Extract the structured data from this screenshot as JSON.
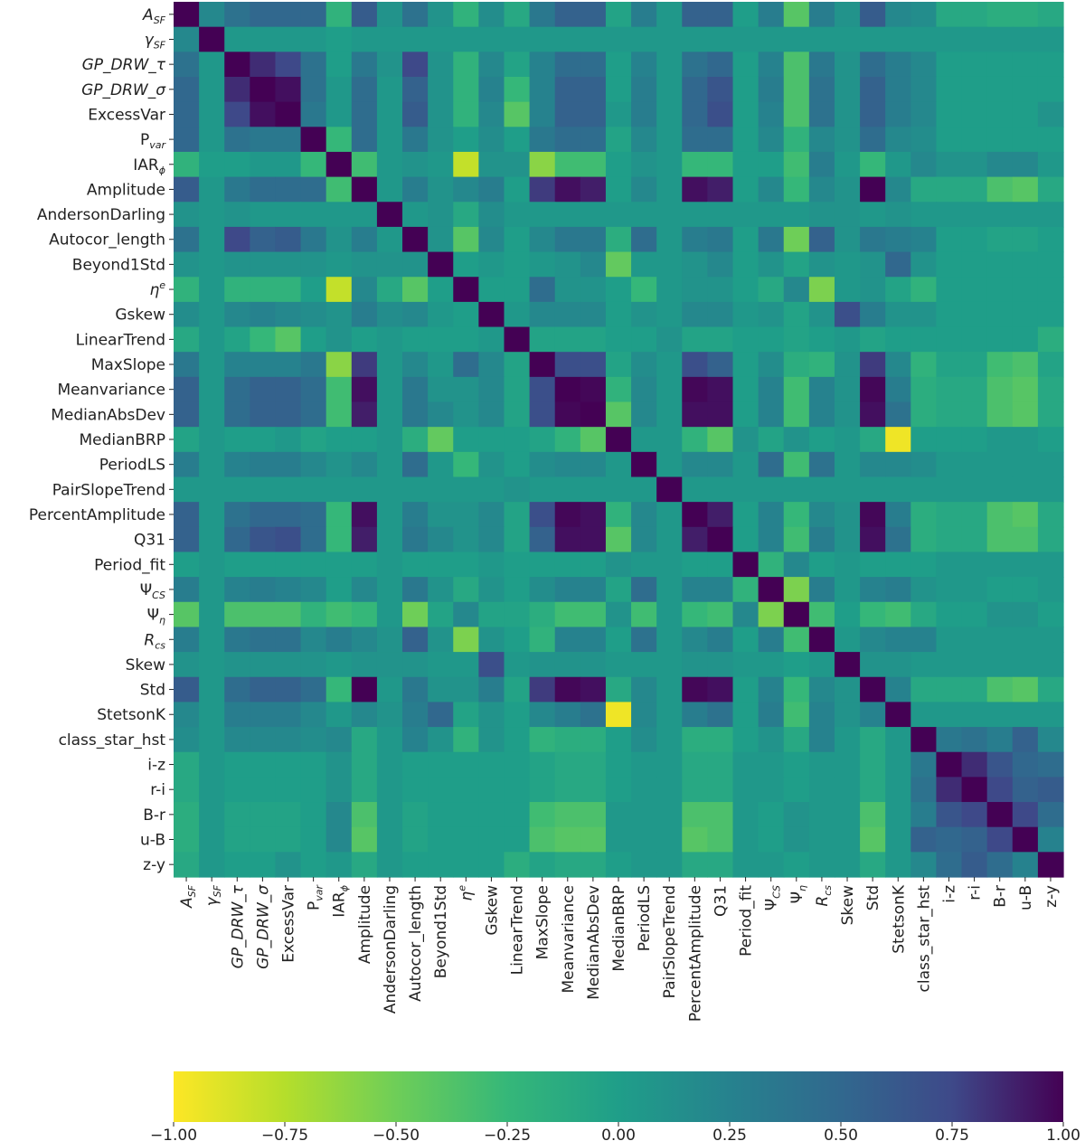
{
  "chart_data": {
    "type": "heatmap",
    "title": "",
    "xlabel": "",
    "ylabel": "",
    "colormap": "viridis_r",
    "labels": [
      "A_SF",
      "γ_SF",
      "GP_DRW_τ",
      "GP_DRW_σ",
      "ExcessVar",
      "P_var",
      "IAR_ϕ",
      "Amplitude",
      "AndersonDarling",
      "Autocor_length",
      "Beyond1Std",
      "η^e",
      "Gskew",
      "LinearTrend",
      "MaxSlope",
      "Meanvariance",
      "MedianAbsDev",
      "MedianBRP",
      "PeriodLS",
      "PairSlopeTrend",
      "PercentAmplitude",
      "Q31",
      "Period_fit",
      "Ψ_CS",
      "Ψ_η",
      "R_cs",
      "Skew",
      "Std",
      "StetsonK",
      "class_star_hst",
      "i-z",
      "r-i",
      "B-r",
      "u-B",
      "z-y"
    ],
    "colorbar": {
      "min": -1.0,
      "max": 1.0,
      "ticks": [
        -1.0,
        -0.75,
        -0.5,
        -0.25,
        0.0,
        0.25,
        0.5,
        0.75,
        1.0
      ],
      "tick_labels": [
        "−1.00",
        "−0.75",
        "−0.50",
        "−0.25",
        "0.00",
        "0.25",
        "0.50",
        "0.75",
        "1.00"
      ],
      "orientation": "horizontal",
      "position": "bottom"
    },
    "values": [
      [
        1.0,
        0.2,
        0.4,
        0.5,
        0.5,
        0.5,
        -0.2,
        0.6,
        0.1,
        0.4,
        0.1,
        -0.2,
        0.15,
        -0.1,
        0.35,
        0.55,
        0.55,
        -0.05,
        0.3,
        0.05,
        0.55,
        0.55,
        0.0,
        0.3,
        -0.4,
        0.3,
        0.1,
        0.6,
        0.2,
        0.15,
        -0.1,
        -0.1,
        -0.15,
        -0.15,
        -0.1
      ],
      [
        0.2,
        1.0,
        0.05,
        0.05,
        0.05,
        0.05,
        0.0,
        0.05,
        0.05,
        0.05,
        0.05,
        0.05,
        0.05,
        0.05,
        0.05,
        0.05,
        0.05,
        0.05,
        0.05,
        0.05,
        0.05,
        0.05,
        0.05,
        0.05,
        0.05,
        0.05,
        0.05,
        0.05,
        0.05,
        0.05,
        0.05,
        0.05,
        0.05,
        0.05,
        0.05
      ],
      [
        0.4,
        0.05,
        1.0,
        0.85,
        0.75,
        0.4,
        0.0,
        0.35,
        0.1,
        0.75,
        0.1,
        -0.2,
        0.2,
        -0.05,
        0.25,
        0.45,
        0.45,
        0.0,
        0.25,
        0.05,
        0.4,
        0.5,
        0.0,
        0.25,
        -0.35,
        0.35,
        0.1,
        0.45,
        0.3,
        0.2,
        0.0,
        0.0,
        0.0,
        0.0,
        0.0
      ],
      [
        0.5,
        0.05,
        0.85,
        1.0,
        0.95,
        0.4,
        0.05,
        0.45,
        0.05,
        0.55,
        0.1,
        -0.2,
        0.25,
        -0.25,
        0.25,
        0.55,
        0.55,
        0.0,
        0.3,
        0.05,
        0.5,
        0.65,
        0.0,
        0.3,
        -0.35,
        0.4,
        0.1,
        0.55,
        0.3,
        0.2,
        0.0,
        0.0,
        0.0,
        0.0,
        0.0
      ],
      [
        0.5,
        0.05,
        0.75,
        0.95,
        1.0,
        0.35,
        0.05,
        0.45,
        0.05,
        0.6,
        0.1,
        -0.2,
        0.2,
        -0.4,
        0.25,
        0.55,
        0.55,
        0.05,
        0.3,
        0.05,
        0.5,
        0.7,
        0.0,
        0.25,
        -0.35,
        0.4,
        0.1,
        0.55,
        0.3,
        0.2,
        0.0,
        0.0,
        0.0,
        0.0,
        0.1
      ],
      [
        0.5,
        0.05,
        0.4,
        0.35,
        0.35,
        1.0,
        -0.25,
        0.45,
        0.05,
        0.35,
        0.1,
        0.0,
        0.15,
        0.0,
        0.35,
        0.45,
        0.45,
        -0.05,
        0.2,
        0.05,
        0.45,
        0.45,
        0.0,
        0.2,
        -0.2,
        0.2,
        0.1,
        0.45,
        0.2,
        0.15,
        0.0,
        0.0,
        0.0,
        0.0,
        0.0
      ],
      [
        -0.2,
        0.0,
        0.0,
        0.05,
        0.05,
        -0.25,
        1.0,
        -0.3,
        0.05,
        0.1,
        0.05,
        -0.8,
        0.1,
        0.1,
        -0.6,
        -0.3,
        -0.3,
        0.0,
        0.1,
        0.05,
        -0.25,
        -0.25,
        0.0,
        0.0,
        -0.3,
        0.3,
        0.05,
        -0.25,
        0.05,
        0.2,
        0.1,
        0.1,
        0.2,
        0.2,
        0.05
      ],
      [
        0.6,
        0.05,
        0.35,
        0.45,
        0.45,
        0.45,
        -0.3,
        1.0,
        0.05,
        0.3,
        0.1,
        0.2,
        0.3,
        0.0,
        0.8,
        0.95,
        0.9,
        0.0,
        0.2,
        0.05,
        0.95,
        0.9,
        0.0,
        0.2,
        -0.25,
        0.2,
        0.1,
        1.0,
        0.2,
        -0.1,
        -0.1,
        -0.1,
        -0.35,
        -0.4,
        -0.1
      ],
      [
        0.1,
        0.05,
        0.1,
        0.05,
        0.05,
        0.05,
        0.05,
        0.05,
        1.0,
        0.05,
        0.1,
        -0.1,
        0.15,
        0.05,
        0.05,
        0.05,
        0.05,
        0.05,
        0.05,
        0.05,
        0.05,
        0.05,
        0.05,
        0.05,
        0.05,
        0.1,
        0.1,
        0.05,
        0.1,
        0.05,
        0.05,
        0.05,
        0.05,
        0.05,
        0.05
      ],
      [
        0.4,
        0.05,
        0.75,
        0.55,
        0.6,
        0.35,
        0.1,
        0.3,
        0.05,
        1.0,
        0.1,
        -0.4,
        0.2,
        0.0,
        0.2,
        0.35,
        0.35,
        -0.15,
        0.45,
        0.05,
        0.3,
        0.35,
        0.0,
        0.35,
        -0.5,
        0.55,
        0.1,
        0.35,
        0.3,
        0.25,
        0.0,
        0.0,
        -0.05,
        -0.05,
        0.0
      ],
      [
        0.1,
        0.05,
        0.1,
        0.1,
        0.1,
        0.1,
        0.05,
        0.1,
        0.1,
        0.1,
        1.0,
        0.0,
        0.05,
        0.0,
        0.05,
        0.1,
        0.2,
        -0.45,
        0.05,
        0.05,
        0.1,
        0.2,
        0.0,
        0.1,
        -0.05,
        0.1,
        0.05,
        0.1,
        0.5,
        0.1,
        0.0,
        0.0,
        0.0,
        0.0,
        0.0
      ],
      [
        -0.2,
        0.05,
        -0.2,
        -0.2,
        -0.2,
        0.0,
        -0.8,
        0.2,
        -0.1,
        -0.4,
        0.0,
        1.0,
        0.0,
        0.0,
        0.45,
        0.1,
        0.1,
        0.0,
        -0.25,
        0.05,
        0.1,
        0.1,
        0.0,
        -0.1,
        0.2,
        -0.55,
        0.05,
        0.1,
        -0.05,
        -0.2,
        0.0,
        0.0,
        0.0,
        0.0,
        0.0
      ],
      [
        0.15,
        0.05,
        0.2,
        0.25,
        0.2,
        0.15,
        0.1,
        0.3,
        0.15,
        0.2,
        0.05,
        0.0,
        1.0,
        0.05,
        0.2,
        0.2,
        0.2,
        0.0,
        0.1,
        0.05,
        0.2,
        0.2,
        0.05,
        0.1,
        -0.05,
        0.1,
        0.7,
        0.3,
        0.1,
        0.1,
        0.0,
        0.0,
        0.0,
        0.0,
        0.0
      ],
      [
        -0.1,
        0.05,
        -0.05,
        -0.25,
        -0.4,
        0.0,
        0.1,
        0.0,
        0.05,
        0.0,
        0.0,
        0.0,
        0.05,
        1.0,
        -0.05,
        -0.05,
        -0.05,
        0.0,
        0.0,
        0.1,
        -0.05,
        -0.05,
        0.0,
        0.0,
        -0.05,
        0.0,
        0.05,
        -0.05,
        0.0,
        0.0,
        0.0,
        0.0,
        0.0,
        0.0,
        -0.15
      ],
      [
        0.35,
        0.05,
        0.25,
        0.25,
        0.25,
        0.35,
        -0.6,
        0.8,
        0.05,
        0.2,
        0.05,
        0.45,
        0.2,
        -0.05,
        1.0,
        0.7,
        0.7,
        -0.05,
        0.15,
        0.05,
        0.7,
        0.55,
        0.0,
        0.15,
        -0.15,
        -0.2,
        0.1,
        0.8,
        0.2,
        -0.2,
        -0.05,
        -0.05,
        -0.3,
        -0.35,
        -0.05
      ],
      [
        0.55,
        0.05,
        0.45,
        0.55,
        0.55,
        0.45,
        -0.3,
        0.95,
        0.05,
        0.35,
        0.1,
        0.1,
        0.2,
        -0.05,
        0.7,
        1.0,
        0.98,
        -0.2,
        0.2,
        0.05,
        0.98,
        0.95,
        0.0,
        0.25,
        -0.3,
        0.25,
        0.1,
        0.98,
        0.3,
        -0.15,
        -0.1,
        -0.1,
        -0.35,
        -0.4,
        -0.1
      ],
      [
        0.55,
        0.05,
        0.45,
        0.55,
        0.55,
        0.45,
        -0.3,
        0.9,
        0.05,
        0.35,
        0.2,
        0.1,
        0.2,
        -0.05,
        0.7,
        0.98,
        1.0,
        -0.4,
        0.2,
        0.05,
        0.95,
        0.95,
        0.0,
        0.25,
        -0.3,
        0.25,
        0.1,
        0.95,
        0.4,
        -0.15,
        -0.1,
        -0.1,
        -0.35,
        -0.4,
        -0.1
      ],
      [
        -0.05,
        0.05,
        0.0,
        0.0,
        0.05,
        -0.05,
        0.0,
        0.0,
        0.05,
        -0.15,
        -0.45,
        0.0,
        0.0,
        0.0,
        -0.05,
        -0.2,
        -0.4,
        1.0,
        0.05,
        0.05,
        -0.2,
        -0.4,
        0.1,
        -0.05,
        0.1,
        0.0,
        0.05,
        -0.1,
        -0.95,
        0.0,
        0.0,
        0.0,
        0.05,
        0.05,
        0.0
      ],
      [
        0.3,
        0.05,
        0.25,
        0.3,
        0.3,
        0.2,
        0.1,
        0.2,
        0.05,
        0.45,
        0.05,
        -0.25,
        0.1,
        0.0,
        0.15,
        0.2,
        0.2,
        0.05,
        1.0,
        0.05,
        0.2,
        0.2,
        0.05,
        0.45,
        -0.3,
        0.4,
        0.05,
        0.2,
        0.2,
        0.15,
        0.05,
        0.05,
        0.05,
        0.05,
        0.05
      ],
      [
        0.05,
        0.05,
        0.05,
        0.05,
        0.05,
        0.05,
        0.05,
        0.05,
        0.05,
        0.05,
        0.05,
        0.05,
        0.05,
        0.1,
        0.05,
        0.05,
        0.05,
        0.05,
        0.05,
        1.0,
        0.05,
        0.05,
        0.05,
        0.05,
        0.05,
        0.05,
        0.05,
        0.05,
        0.05,
        0.05,
        0.05,
        0.05,
        0.05,
        0.05,
        0.05
      ],
      [
        0.55,
        0.05,
        0.4,
        0.5,
        0.5,
        0.45,
        -0.25,
        0.95,
        0.05,
        0.3,
        0.1,
        0.1,
        0.2,
        -0.05,
        0.7,
        0.98,
        0.95,
        -0.2,
        0.2,
        0.05,
        1.0,
        0.9,
        0.0,
        0.25,
        -0.25,
        0.2,
        0.1,
        0.98,
        0.3,
        -0.15,
        -0.1,
        -0.1,
        -0.35,
        -0.4,
        -0.1
      ],
      [
        0.55,
        0.05,
        0.5,
        0.65,
        0.7,
        0.45,
        -0.25,
        0.9,
        0.05,
        0.35,
        0.2,
        0.1,
        0.2,
        -0.05,
        0.55,
        0.95,
        0.95,
        -0.4,
        0.2,
        0.05,
        0.9,
        1.0,
        0.0,
        0.25,
        -0.3,
        0.3,
        0.1,
        0.95,
        0.4,
        -0.15,
        -0.1,
        -0.1,
        -0.35,
        -0.35,
        -0.1
      ],
      [
        0.0,
        0.05,
        0.0,
        0.0,
        0.0,
        0.0,
        0.0,
        0.0,
        0.05,
        0.0,
        0.0,
        0.0,
        0.05,
        0.0,
        0.0,
        0.0,
        0.0,
        0.1,
        0.05,
        0.05,
        0.0,
        0.0,
        1.0,
        -0.2,
        0.2,
        0.0,
        0.05,
        0.0,
        0.0,
        0.0,
        0.05,
        0.05,
        0.05,
        0.05,
        0.05
      ],
      [
        0.3,
        0.05,
        0.25,
        0.3,
        0.25,
        0.2,
        0.0,
        0.2,
        0.05,
        0.35,
        0.1,
        -0.1,
        0.1,
        0.0,
        0.15,
        0.25,
        0.25,
        -0.05,
        0.45,
        0.05,
        0.25,
        0.25,
        -0.2,
        1.0,
        -0.55,
        0.3,
        0.05,
        0.25,
        0.3,
        0.1,
        0.05,
        0.05,
        0.0,
        0.0,
        0.05
      ],
      [
        -0.4,
        0.05,
        -0.35,
        -0.35,
        -0.35,
        -0.2,
        -0.3,
        -0.25,
        0.05,
        -0.5,
        -0.05,
        0.2,
        -0.05,
        -0.05,
        -0.15,
        -0.3,
        -0.3,
        0.1,
        -0.3,
        0.05,
        -0.25,
        -0.3,
        0.2,
        -0.55,
        1.0,
        -0.3,
        0.0,
        -0.25,
        -0.3,
        -0.1,
        0.0,
        0.0,
        0.1,
        0.1,
        0.0
      ],
      [
        0.3,
        0.05,
        0.35,
        0.4,
        0.4,
        0.2,
        0.3,
        0.2,
        0.1,
        0.55,
        0.1,
        -0.55,
        0.1,
        0.0,
        -0.2,
        0.25,
        0.25,
        0.0,
        0.4,
        0.05,
        0.2,
        0.3,
        0.0,
        0.3,
        -0.3,
        1.0,
        0.05,
        0.2,
        0.25,
        0.25,
        0.05,
        0.05,
        0.05,
        0.05,
        0.05
      ],
      [
        0.1,
        0.05,
        0.1,
        0.1,
        0.1,
        0.1,
        0.05,
        0.1,
        0.1,
        0.1,
        0.05,
        0.05,
        0.7,
        0.05,
        0.1,
        0.1,
        0.1,
        0.05,
        0.05,
        0.05,
        0.1,
        0.1,
        0.05,
        0.05,
        0.0,
        0.05,
        1.0,
        0.1,
        0.1,
        0.05,
        0.05,
        0.05,
        0.05,
        0.05,
        0.05
      ],
      [
        0.6,
        0.05,
        0.45,
        0.55,
        0.55,
        0.45,
        -0.25,
        1.0,
        0.05,
        0.35,
        0.1,
        0.1,
        0.3,
        -0.05,
        0.8,
        0.98,
        0.95,
        -0.1,
        0.2,
        0.05,
        0.98,
        0.95,
        0.0,
        0.25,
        -0.25,
        0.2,
        0.1,
        1.0,
        0.25,
        -0.1,
        -0.1,
        -0.1,
        -0.35,
        -0.4,
        -0.1
      ],
      [
        0.2,
        0.05,
        0.3,
        0.3,
        0.3,
        0.2,
        0.05,
        0.2,
        0.1,
        0.3,
        0.5,
        -0.05,
        0.1,
        0.0,
        0.2,
        0.3,
        0.4,
        -0.95,
        0.2,
        0.05,
        0.3,
        0.4,
        0.0,
        0.3,
        -0.3,
        0.25,
        0.1,
        0.25,
        1.0,
        0.05,
        0.05,
        0.05,
        0.05,
        0.05,
        0.05
      ],
      [
        0.15,
        0.05,
        0.2,
        0.2,
        0.2,
        0.15,
        0.2,
        -0.1,
        0.05,
        0.25,
        0.1,
        -0.2,
        0.1,
        0.0,
        -0.2,
        -0.15,
        -0.15,
        0.0,
        0.15,
        0.05,
        -0.15,
        -0.15,
        0.0,
        0.1,
        -0.1,
        0.25,
        0.05,
        -0.1,
        0.05,
        1.0,
        0.35,
        0.4,
        0.3,
        0.55,
        0.2
      ],
      [
        -0.1,
        0.05,
        0.0,
        0.0,
        0.0,
        0.0,
        0.1,
        -0.1,
        0.05,
        0.0,
        0.0,
        0.0,
        0.0,
        0.0,
        -0.05,
        -0.1,
        -0.1,
        0.0,
        0.05,
        0.05,
        -0.1,
        -0.1,
        0.05,
        0.05,
        0.0,
        0.05,
        0.05,
        -0.1,
        0.05,
        0.35,
        1.0,
        0.85,
        0.65,
        0.5,
        0.45
      ],
      [
        -0.1,
        0.05,
        0.0,
        0.0,
        0.0,
        0.0,
        0.1,
        -0.1,
        0.05,
        0.0,
        0.0,
        0.0,
        0.0,
        0.0,
        -0.05,
        -0.1,
        -0.1,
        0.0,
        0.05,
        0.05,
        -0.1,
        -0.1,
        0.05,
        0.05,
        0.0,
        0.05,
        0.05,
        -0.1,
        0.05,
        0.4,
        0.85,
        1.0,
        0.75,
        0.55,
        0.6
      ],
      [
        -0.15,
        0.05,
        -0.05,
        -0.05,
        -0.05,
        0.0,
        0.2,
        -0.35,
        0.05,
        -0.05,
        0.0,
        0.0,
        0.0,
        0.0,
        -0.3,
        -0.35,
        -0.35,
        0.05,
        0.05,
        0.05,
        -0.35,
        -0.35,
        0.05,
        0.0,
        0.1,
        0.05,
        0.05,
        -0.35,
        0.05,
        0.3,
        0.65,
        0.75,
        1.0,
        0.75,
        0.45
      ],
      [
        -0.15,
        0.05,
        -0.05,
        -0.05,
        -0.05,
        0.0,
        0.2,
        -0.4,
        0.05,
        -0.05,
        0.0,
        0.0,
        0.0,
        0.0,
        -0.35,
        -0.4,
        -0.4,
        0.05,
        0.05,
        0.05,
        -0.4,
        -0.35,
        0.05,
        0.0,
        0.1,
        0.05,
        0.05,
        -0.4,
        0.05,
        0.55,
        0.5,
        0.55,
        0.75,
        1.0,
        0.25
      ],
      [
        -0.1,
        0.05,
        0.0,
        0.0,
        0.1,
        0.0,
        0.05,
        -0.1,
        0.05,
        0.0,
        0.0,
        0.0,
        0.0,
        -0.15,
        -0.05,
        -0.1,
        -0.1,
        0.0,
        0.05,
        0.05,
        -0.1,
        -0.1,
        0.05,
        0.05,
        0.0,
        0.05,
        0.05,
        -0.1,
        0.05,
        0.2,
        0.45,
        0.6,
        0.45,
        0.25,
        1.0
      ]
    ]
  }
}
